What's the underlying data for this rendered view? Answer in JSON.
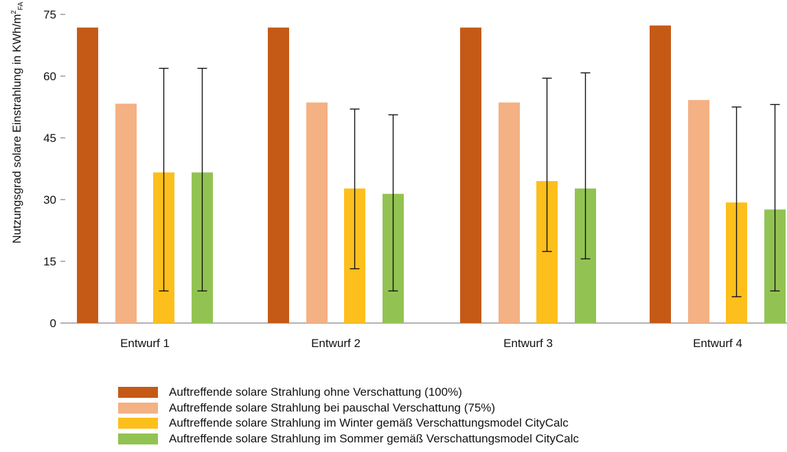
{
  "chart_data": {
    "type": "bar",
    "ylabel": "Nutzungsgrad solare Einstrahlung in KWh/m",
    "ylabel_superscript": "2",
    "ylabel_subscript": "FA",
    "ylim": [
      0,
      75
    ],
    "yticks": [
      "0",
      "15",
      "30",
      "45",
      "60",
      "75"
    ],
    "categories": [
      "Entwurf 1",
      "Entwurf 2",
      "Entwurf 3",
      "Entwurf 4"
    ],
    "legend_position": "bottom",
    "series": [
      {
        "name": "Auftreffende solare Strahlung ohne Verschattung (100%)",
        "color": "#c55a17",
        "values": [
          71.8,
          71.8,
          71.8,
          72.3
        ],
        "errors": null
      },
      {
        "name": "Auftreffende solare Strahlung bei pauschal Verschattung (75%)",
        "color": "#f4b183",
        "values": [
          53.3,
          53.6,
          53.6,
          54.2
        ],
        "errors": null
      },
      {
        "name": "Auftreffende solare Strahlung im Winter gemäß Verschattungsmodel CityCalc",
        "color": "#fdbf1c",
        "values": [
          36.6,
          32.7,
          34.5,
          29.3
        ],
        "errors": [
          [
            7.8,
            61.9
          ],
          [
            13.2,
            52.0
          ],
          [
            17.4,
            59.5
          ],
          [
            6.4,
            52.5
          ]
        ]
      },
      {
        "name": "Auftreffende solare Strahlung im Sommer gemäß Verschattungsmodel CityCalc",
        "color": "#92c352",
        "values": [
          36.6,
          31.4,
          32.7,
          27.6
        ],
        "errors": [
          [
            7.8,
            61.9
          ],
          [
            7.8,
            50.6
          ],
          [
            15.6,
            60.8
          ],
          [
            7.8,
            53.1
          ]
        ]
      }
    ]
  }
}
